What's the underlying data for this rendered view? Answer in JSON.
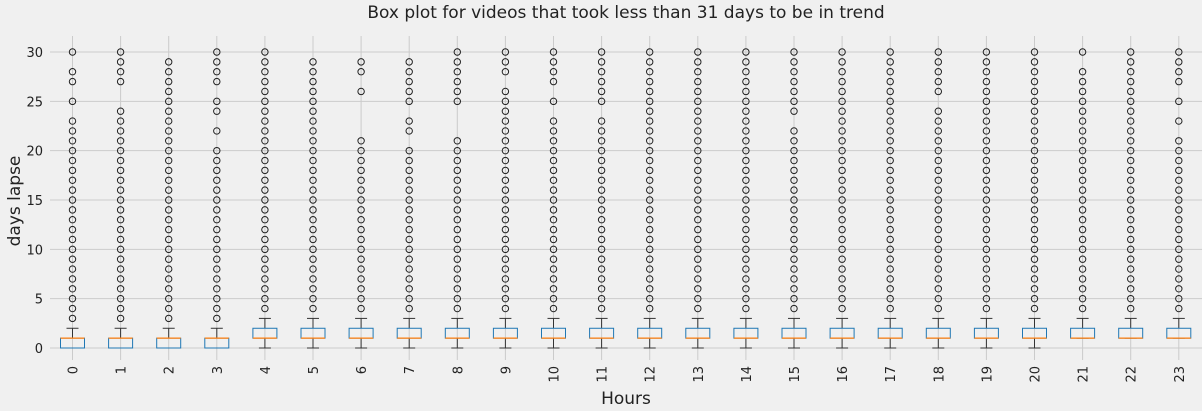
{
  "chart_data": {
    "type": "box",
    "title": "Box plot for videos that took less than 31 days to be in trend",
    "xlabel": "Hours",
    "ylabel": "days lapse",
    "categories": [
      "0",
      "1",
      "2",
      "3",
      "4",
      "5",
      "6",
      "7",
      "8",
      "9",
      "10",
      "11",
      "12",
      "13",
      "14",
      "15",
      "16",
      "17",
      "18",
      "19",
      "20",
      "21",
      "22",
      "23"
    ],
    "ylim": [
      -1.5,
      31.5
    ],
    "yticks": [
      0,
      5,
      10,
      15,
      20,
      25,
      30
    ],
    "grid": true,
    "colors": {
      "box": "#1f77b4",
      "median": "#ff7f0e",
      "whisker": "#333333",
      "flier": "#222222",
      "grid": "#cbcbcb",
      "background": "#f0f0f0"
    },
    "boxes": [
      {
        "q1": 0,
        "median": 1,
        "q3": 1,
        "whislo": 0,
        "whishi": 2,
        "fliers": [
          3,
          4,
          5,
          6,
          7,
          8,
          9,
          10,
          11,
          12,
          13,
          14,
          15,
          16,
          17,
          18,
          19,
          20,
          21,
          22,
          23,
          25,
          27,
          28,
          30
        ]
      },
      {
        "q1": 0,
        "median": 1,
        "q3": 1,
        "whislo": 0,
        "whishi": 2,
        "fliers": [
          3,
          4,
          5,
          6,
          7,
          8,
          9,
          10,
          11,
          12,
          13,
          14,
          15,
          16,
          17,
          18,
          19,
          20,
          21,
          22,
          23,
          24,
          27,
          28,
          29,
          30
        ]
      },
      {
        "q1": 0,
        "median": 1,
        "q3": 1,
        "whislo": 0,
        "whishi": 2,
        "fliers": [
          3,
          4,
          5,
          6,
          7,
          8,
          9,
          10,
          11,
          12,
          13,
          14,
          15,
          16,
          17,
          18,
          19,
          20,
          21,
          22,
          23,
          24,
          25,
          26,
          27,
          28,
          29
        ]
      },
      {
        "q1": 0,
        "median": 1,
        "q3": 1,
        "whislo": 0,
        "whishi": 2,
        "fliers": [
          3,
          4,
          5,
          6,
          7,
          8,
          9,
          10,
          11,
          12,
          13,
          14,
          15,
          16,
          17,
          18,
          19,
          20,
          22,
          24,
          25,
          27,
          28,
          29,
          30
        ]
      },
      {
        "q1": 1,
        "median": 1,
        "q3": 2,
        "whislo": 0,
        "whishi": 3,
        "fliers": [
          4,
          5,
          6,
          7,
          8,
          9,
          10,
          11,
          12,
          13,
          14,
          15,
          16,
          17,
          18,
          19,
          20,
          21,
          22,
          23,
          24,
          25,
          26,
          27,
          28,
          29,
          30
        ]
      },
      {
        "q1": 1,
        "median": 1,
        "q3": 2,
        "whislo": 0,
        "whishi": 3,
        "fliers": [
          4,
          5,
          6,
          7,
          8,
          9,
          10,
          11,
          12,
          13,
          14,
          15,
          16,
          17,
          18,
          19,
          20,
          21,
          22,
          23,
          24,
          25,
          26,
          27,
          28,
          29
        ]
      },
      {
        "q1": 1,
        "median": 1,
        "q3": 2,
        "whislo": 0,
        "whishi": 3,
        "fliers": [
          4,
          5,
          6,
          7,
          8,
          9,
          10,
          11,
          12,
          13,
          14,
          15,
          16,
          17,
          18,
          19,
          20,
          21,
          26,
          28,
          29
        ]
      },
      {
        "q1": 1,
        "median": 1,
        "q3": 2,
        "whislo": 0,
        "whishi": 3,
        "fliers": [
          4,
          5,
          6,
          7,
          8,
          9,
          10,
          11,
          12,
          13,
          14,
          15,
          16,
          17,
          18,
          19,
          20,
          22,
          23,
          25,
          26,
          27,
          28,
          29
        ]
      },
      {
        "q1": 1,
        "median": 1,
        "q3": 2,
        "whislo": 0,
        "whishi": 3,
        "fliers": [
          4,
          5,
          6,
          7,
          8,
          9,
          10,
          11,
          12,
          13,
          14,
          15,
          16,
          17,
          18,
          19,
          20,
          21,
          25,
          26,
          27,
          28,
          29,
          30
        ]
      },
      {
        "q1": 1,
        "median": 1,
        "q3": 2,
        "whislo": 0,
        "whishi": 3,
        "fliers": [
          4,
          5,
          6,
          7,
          8,
          9,
          10,
          11,
          12,
          13,
          14,
          15,
          16,
          17,
          18,
          19,
          20,
          21,
          22,
          23,
          24,
          25,
          26,
          28,
          29,
          30
        ]
      },
      {
        "q1": 1,
        "median": 1,
        "q3": 2,
        "whislo": 0,
        "whishi": 3,
        "fliers": [
          4,
          5,
          6,
          7,
          8,
          9,
          10,
          11,
          12,
          13,
          14,
          15,
          16,
          17,
          18,
          19,
          20,
          21,
          22,
          23,
          25,
          27,
          28,
          29,
          30
        ]
      },
      {
        "q1": 1,
        "median": 1,
        "q3": 2,
        "whislo": 0,
        "whishi": 3,
        "fliers": [
          4,
          5,
          6,
          7,
          8,
          9,
          10,
          11,
          12,
          13,
          14,
          15,
          16,
          17,
          18,
          19,
          20,
          21,
          22,
          23,
          25,
          26,
          27,
          28,
          29,
          30
        ]
      },
      {
        "q1": 1,
        "median": 1,
        "q3": 2,
        "whislo": 0,
        "whishi": 3,
        "fliers": [
          4,
          5,
          6,
          7,
          8,
          9,
          10,
          11,
          12,
          13,
          14,
          15,
          16,
          17,
          18,
          19,
          20,
          21,
          22,
          23,
          24,
          25,
          26,
          27,
          28,
          29,
          30
        ]
      },
      {
        "q1": 1,
        "median": 1,
        "q3": 2,
        "whislo": 0,
        "whishi": 3,
        "fliers": [
          4,
          5,
          6,
          7,
          8,
          9,
          10,
          11,
          12,
          13,
          14,
          15,
          16,
          17,
          18,
          19,
          20,
          21,
          22,
          23,
          24,
          25,
          26,
          27,
          28,
          29,
          30
        ]
      },
      {
        "q1": 1,
        "median": 1,
        "q3": 2,
        "whislo": 0,
        "whishi": 3,
        "fliers": [
          4,
          5,
          6,
          7,
          8,
          9,
          10,
          11,
          12,
          13,
          14,
          15,
          16,
          17,
          18,
          19,
          20,
          21,
          22,
          23,
          24,
          25,
          26,
          27,
          28,
          29,
          30
        ]
      },
      {
        "q1": 1,
        "median": 1,
        "q3": 2,
        "whislo": 0,
        "whishi": 3,
        "fliers": [
          4,
          5,
          6,
          7,
          8,
          9,
          10,
          11,
          12,
          13,
          14,
          15,
          16,
          17,
          18,
          19,
          20,
          21,
          22,
          24,
          25,
          26,
          27,
          28,
          29,
          30
        ]
      },
      {
        "q1": 1,
        "median": 1,
        "q3": 2,
        "whislo": 0,
        "whishi": 3,
        "fliers": [
          4,
          5,
          6,
          7,
          8,
          9,
          10,
          11,
          12,
          13,
          14,
          15,
          16,
          17,
          18,
          19,
          20,
          21,
          22,
          23,
          24,
          25,
          26,
          27,
          28,
          29,
          30
        ]
      },
      {
        "q1": 1,
        "median": 1,
        "q3": 2,
        "whislo": 0,
        "whishi": 3,
        "fliers": [
          4,
          5,
          6,
          7,
          8,
          9,
          10,
          11,
          12,
          13,
          14,
          15,
          16,
          17,
          18,
          19,
          20,
          21,
          22,
          23,
          24,
          25,
          26,
          27,
          28,
          29,
          30
        ]
      },
      {
        "q1": 1,
        "median": 1,
        "q3": 2,
        "whislo": 0,
        "whishi": 3,
        "fliers": [
          4,
          5,
          6,
          7,
          8,
          9,
          10,
          11,
          12,
          13,
          14,
          15,
          16,
          17,
          18,
          19,
          20,
          21,
          22,
          23,
          24,
          26,
          27,
          28,
          29,
          30
        ]
      },
      {
        "q1": 1,
        "median": 1,
        "q3": 2,
        "whislo": 0,
        "whishi": 3,
        "fliers": [
          4,
          5,
          6,
          7,
          8,
          9,
          10,
          11,
          12,
          13,
          14,
          15,
          16,
          17,
          18,
          19,
          20,
          21,
          22,
          23,
          24,
          25,
          26,
          27,
          28,
          29,
          30
        ]
      },
      {
        "q1": 1,
        "median": 1,
        "q3": 2,
        "whislo": 0,
        "whishi": 3,
        "fliers": [
          4,
          5,
          6,
          7,
          8,
          9,
          10,
          11,
          12,
          13,
          14,
          15,
          16,
          17,
          18,
          19,
          20,
          21,
          22,
          23,
          24,
          25,
          26,
          27,
          28,
          29,
          30
        ]
      },
      {
        "q1": 1,
        "median": 1,
        "q3": 2,
        "whislo": 1,
        "whishi": 3,
        "fliers": [
          4,
          5,
          6,
          7,
          8,
          9,
          10,
          11,
          12,
          13,
          14,
          15,
          16,
          17,
          18,
          19,
          20,
          21,
          22,
          23,
          24,
          25,
          26,
          27,
          28,
          30
        ]
      },
      {
        "q1": 1,
        "median": 1,
        "q3": 2,
        "whislo": 1,
        "whishi": 3,
        "fliers": [
          4,
          5,
          6,
          7,
          8,
          9,
          10,
          11,
          12,
          13,
          14,
          15,
          16,
          17,
          18,
          19,
          20,
          21,
          22,
          23,
          24,
          25,
          26,
          27,
          28,
          29,
          30
        ]
      },
      {
        "q1": 1,
        "median": 1,
        "q3": 2,
        "whislo": 1,
        "whishi": 3,
        "fliers": [
          4,
          5,
          6,
          7,
          8,
          9,
          10,
          11,
          12,
          13,
          14,
          15,
          16,
          17,
          18,
          19,
          20,
          21,
          23,
          25,
          27,
          28,
          29,
          30
        ]
      }
    ]
  }
}
